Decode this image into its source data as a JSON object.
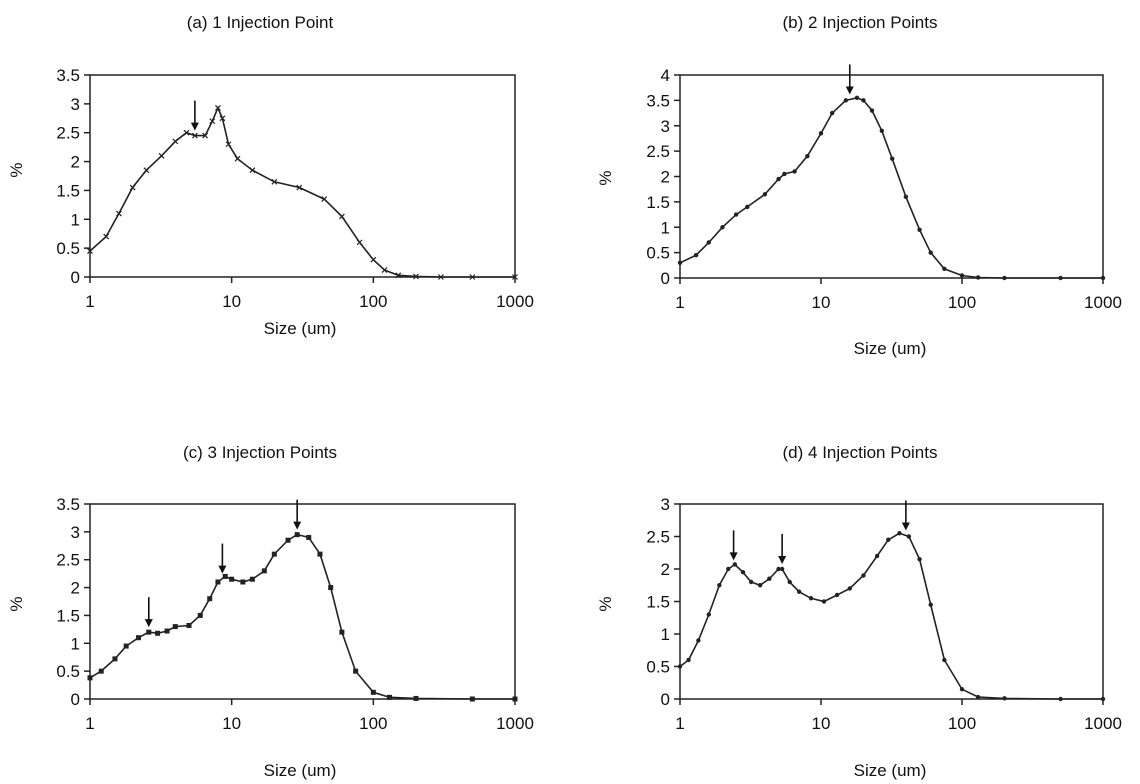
{
  "figure": {
    "panels": [
      {
        "title": "(a) 1 Injection Point",
        "xlabel": "Size (um)",
        "ylabel": "%"
      },
      {
        "title": "(b) 2 Injection Points",
        "xlabel": "Size (um)",
        "ylabel": "%"
      },
      {
        "title": "(c) 3 Injection Points",
        "xlabel": "Size (um)",
        "ylabel": "%"
      },
      {
        "title": "(d) 4 Injection Points",
        "xlabel": "Size (um)",
        "ylabel": "%"
      }
    ]
  },
  "chart_data": [
    {
      "type": "line",
      "title": "(a) 1 Injection Point",
      "xlabel": "Size (um)",
      "ylabel": "%",
      "xscale": "log",
      "xlim": [
        1,
        1000
      ],
      "ylim": [
        0,
        3.5
      ],
      "xticks": [
        "1",
        "10",
        "100",
        "1000"
      ],
      "yticks": [
        "0",
        "0.5",
        "1",
        "1.5",
        "2",
        "2.5",
        "3",
        "3.5"
      ],
      "marker": "cross",
      "arrows_at_x": [
        5.5
      ],
      "series": [
        {
          "x": [
            1,
            1.3,
            1.6,
            2,
            2.5,
            3.2,
            4,
            4.8,
            5.5,
            6.5,
            7.3,
            8,
            8.6,
            9.5,
            11,
            14,
            20,
            30,
            45,
            60,
            80,
            100,
            120,
            150,
            200,
            300,
            500,
            1000
          ],
          "y": [
            0.45,
            0.7,
            1.1,
            1.55,
            1.85,
            2.1,
            2.35,
            2.5,
            2.45,
            2.45,
            2.7,
            2.93,
            2.75,
            2.3,
            2.05,
            1.85,
            1.65,
            1.55,
            1.35,
            1.05,
            0.6,
            0.3,
            0.12,
            0.03,
            0.01,
            0,
            0,
            0
          ]
        }
      ]
    },
    {
      "type": "line",
      "title": "(b) 2 Injection Points",
      "xlabel": "Size (um)",
      "ylabel": "%",
      "xscale": "log",
      "xlim": [
        1,
        1000
      ],
      "ylim": [
        0,
        4
      ],
      "xticks": [
        "1",
        "10",
        "100",
        "1000"
      ],
      "yticks": [
        "0",
        "0.5",
        "1",
        "1.5",
        "2",
        "2.5",
        "3",
        "3.5",
        "4"
      ],
      "marker": "dot",
      "arrows_at_x": [
        16
      ],
      "series": [
        {
          "x": [
            1,
            1.3,
            1.6,
            2,
            2.5,
            3,
            4,
            5,
            5.5,
            6.5,
            8,
            10,
            12,
            15,
            18,
            20,
            23,
            27,
            32,
            40,
            50,
            60,
            75,
            100,
            130,
            200,
            500,
            1000
          ],
          "y": [
            0.3,
            0.45,
            0.7,
            1.0,
            1.25,
            1.4,
            1.65,
            1.95,
            2.05,
            2.1,
            2.4,
            2.85,
            3.25,
            3.5,
            3.55,
            3.5,
            3.3,
            2.9,
            2.35,
            1.6,
            0.95,
            0.5,
            0.18,
            0.05,
            0.01,
            0,
            0,
            0
          ]
        }
      ]
    },
    {
      "type": "line",
      "title": "(c) 3 Injection Points",
      "xlabel": "Size (um)",
      "ylabel": "%",
      "xscale": "log",
      "xlim": [
        1,
        1000
      ],
      "ylim": [
        0,
        3.5
      ],
      "xticks": [
        "1",
        "10",
        "100",
        "1000"
      ],
      "yticks": [
        "0",
        "0.5",
        "1",
        "1.5",
        "2",
        "2.5",
        "3",
        "3.5"
      ],
      "marker": "square",
      "arrows_at_x": [
        2.6,
        8.6,
        29
      ],
      "series": [
        {
          "x": [
            1,
            1.2,
            1.5,
            1.8,
            2.2,
            2.6,
            3,
            3.5,
            4,
            5,
            6,
            7,
            8,
            9,
            10,
            12,
            14,
            17,
            20,
            25,
            29,
            35,
            42,
            50,
            60,
            75,
            100,
            130,
            200,
            500,
            1000
          ],
          "y": [
            0.38,
            0.5,
            0.72,
            0.95,
            1.1,
            1.2,
            1.18,
            1.22,
            1.3,
            1.32,
            1.5,
            1.8,
            2.1,
            2.2,
            2.15,
            2.1,
            2.15,
            2.3,
            2.6,
            2.85,
            2.95,
            2.9,
            2.6,
            2.0,
            1.2,
            0.5,
            0.12,
            0.03,
            0.01,
            0,
            0
          ]
        }
      ]
    },
    {
      "type": "line",
      "title": "(d) 4 Injection Points",
      "xlabel": "Size (um)",
      "ylabel": "%",
      "xscale": "log",
      "xlim": [
        1,
        1000
      ],
      "ylim": [
        0,
        3
      ],
      "xticks": [
        "1",
        "10",
        "100",
        "1000"
      ],
      "yticks": [
        "0",
        "0.5",
        "1",
        "1.5",
        "2",
        "2.5",
        "3"
      ],
      "marker": "dot",
      "arrows_at_x": [
        2.4,
        5.3,
        40
      ],
      "series": [
        {
          "x": [
            1,
            1.15,
            1.35,
            1.6,
            1.9,
            2.2,
            2.45,
            2.8,
            3.2,
            3.7,
            4.3,
            5,
            5.3,
            6,
            7,
            8.5,
            10.5,
            13,
            16,
            20,
            25,
            30,
            36,
            42,
            50,
            60,
            75,
            100,
            130,
            200,
            500,
            1000
          ],
          "y": [
            0.5,
            0.6,
            0.9,
            1.3,
            1.75,
            2.0,
            2.07,
            1.95,
            1.8,
            1.75,
            1.85,
            2.0,
            2.0,
            1.8,
            1.65,
            1.55,
            1.5,
            1.6,
            1.7,
            1.9,
            2.2,
            2.45,
            2.55,
            2.5,
            2.15,
            1.45,
            0.6,
            0.15,
            0.03,
            0.01,
            0,
            0
          ]
        }
      ]
    }
  ]
}
